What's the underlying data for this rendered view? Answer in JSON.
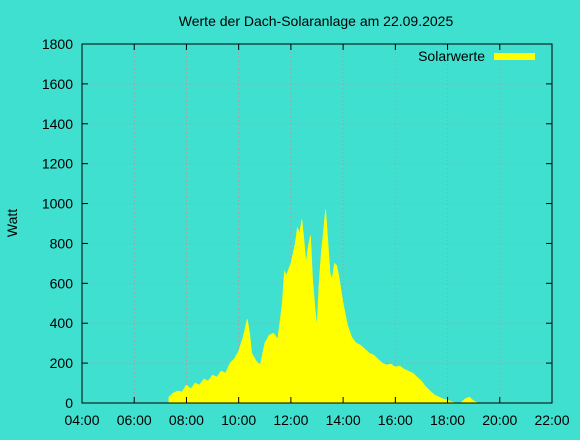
{
  "chart_data": {
    "type": "area",
    "title": "Werte der Dach-Solaranlage am 22.09.2025",
    "xlabel": "",
    "ylabel": "Watt",
    "xlim": [
      4,
      22
    ],
    "ylim": [
      0,
      1800
    ],
    "x_ticks": [
      "04:00",
      "06:00",
      "08:00",
      "10:00",
      "12:00",
      "14:00",
      "16:00",
      "18:00",
      "20:00",
      "22:00"
    ],
    "y_ticks": [
      0,
      200,
      400,
      600,
      800,
      1000,
      1200,
      1400,
      1600,
      1800
    ],
    "grid": true,
    "legend_position": "top-right",
    "series_color": "#ffff00",
    "series": [
      {
        "name": "Solarwerte",
        "x": [
          7.33,
          7.5,
          7.67,
          7.83,
          8.0,
          8.17,
          8.33,
          8.5,
          8.67,
          8.83,
          9.0,
          9.17,
          9.33,
          9.5,
          9.67,
          9.83,
          10.0,
          10.17,
          10.33,
          10.42,
          10.5,
          10.67,
          10.83,
          11.0,
          11.17,
          11.33,
          11.5,
          11.67,
          11.75,
          11.83,
          12.0,
          12.17,
          12.25,
          12.33,
          12.42,
          12.5,
          12.58,
          12.67,
          12.75,
          12.83,
          12.92,
          13.0,
          13.08,
          13.17,
          13.25,
          13.33,
          13.42,
          13.5,
          13.58,
          13.67,
          13.75,
          13.83,
          14.0,
          14.17,
          14.33,
          14.5,
          14.67,
          14.83,
          15.0,
          15.17,
          15.33,
          15.5,
          15.67,
          15.83,
          16.0,
          16.17,
          16.33,
          16.5,
          16.67,
          16.83,
          17.0,
          17.17,
          17.33,
          17.5,
          17.67,
          17.83,
          18.0,
          18.17,
          18.33,
          18.5,
          18.67,
          18.83,
          19.0,
          19.17
        ],
        "y": [
          30,
          50,
          60,
          55,
          90,
          70,
          100,
          90,
          120,
          110,
          140,
          130,
          160,
          150,
          200,
          220,
          260,
          330,
          420,
          350,
          250,
          210,
          190,
          300,
          340,
          350,
          320,
          500,
          660,
          640,
          700,
          800,
          880,
          850,
          920,
          820,
          700,
          790,
          840,
          620,
          480,
          380,
          600,
          760,
          860,
          970,
          800,
          650,
          620,
          700,
          690,
          640,
          500,
          390,
          330,
          300,
          290,
          270,
          250,
          240,
          220,
          200,
          190,
          195,
          180,
          185,
          170,
          160,
          150,
          130,
          110,
          80,
          60,
          40,
          30,
          20,
          15,
          5,
          0,
          0,
          20,
          30,
          10,
          0
        ]
      }
    ]
  }
}
